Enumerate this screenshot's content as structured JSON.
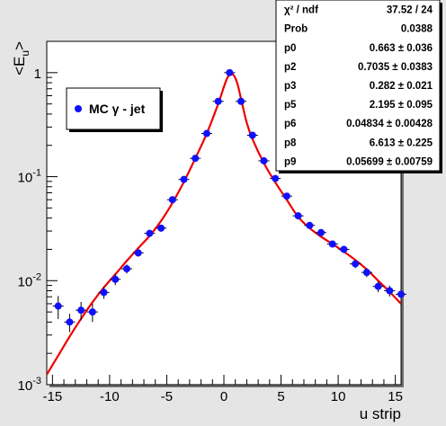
{
  "chart_data": {
    "type": "scatter",
    "xlabel": "u strip",
    "ylabel": "<E_u>",
    "xlim": [
      -15.5,
      15.5
    ],
    "ylim": [
      0.001,
      2.0
    ],
    "yscale": "log",
    "grid": false,
    "x_ticks": [
      -15,
      -10,
      -5,
      0,
      5,
      10,
      15
    ],
    "y_ticks": [
      {
        "value": 0.001,
        "base": "10",
        "exp": "-3"
      },
      {
        "value": 0.01,
        "base": "10",
        "exp": "-2"
      },
      {
        "value": 0.1,
        "base": "10",
        "exp": "-1"
      },
      {
        "value": 1,
        "base": "1",
        "exp": ""
      }
    ],
    "colors": {
      "markers": "#1010ff",
      "fit": "#ee0000",
      "frame": "#e5e5e5",
      "plot_bg": "#ffffff"
    },
    "series": [
      {
        "name": "MC γ - jet",
        "x": [
          -14.5,
          -13.5,
          -12.5,
          -11.5,
          -10.5,
          -9.5,
          -8.5,
          -7.5,
          -6.5,
          -5.5,
          -4.5,
          -3.5,
          -2.5,
          -1.5,
          -0.5,
          0.5,
          1.5,
          2.5,
          3.5,
          4.5,
          5.5,
          6.5,
          7.5,
          8.5,
          9.5,
          10.5,
          11.5,
          12.5,
          13.5,
          14.5,
          15.5
        ],
        "y": [
          0.0057,
          0.004,
          0.0052,
          0.005,
          0.0077,
          0.0103,
          0.013,
          0.0185,
          0.0285,
          0.032,
          0.06,
          0.094,
          0.15,
          0.26,
          0.53,
          1.0,
          0.53,
          0.25,
          0.142,
          0.096,
          0.065,
          0.042,
          0.034,
          0.029,
          0.0225,
          0.02,
          0.0145,
          0.012,
          0.0088,
          0.008,
          0.0074
        ],
        "yerr_frac": [
          0.25,
          0.2,
          0.2,
          0.2,
          0.13,
          0.12,
          0.1,
          0.08,
          0.06,
          0.05,
          0.04,
          0.03,
          0.02,
          0.02,
          0.01,
          0.01,
          0.01,
          0.02,
          0.03,
          0.04,
          0.05,
          0.05,
          0.06,
          0.06,
          0.07,
          0.08,
          0.09,
          0.1,
          0.12,
          0.12,
          0.13
        ]
      }
    ],
    "fit": {
      "x": [
        -15.5,
        -14.5,
        -13.5,
        -12.5,
        -11.5,
        -10.5,
        -9.5,
        -8.5,
        -7.5,
        -6.5,
        -5.5,
        -4.5,
        -3.5,
        -2.5,
        -1.5,
        -0.5,
        0.0,
        0.3,
        0.6,
        0.9,
        1.2,
        1.5,
        2.0,
        2.5,
        3.5,
        4.5,
        5.5,
        6.5,
        7.5,
        8.5,
        9.5,
        10.5,
        11.5,
        12.5,
        13.5,
        14.5,
        15.5
      ],
      "y": [
        0.00125,
        0.0019,
        0.0029,
        0.0043,
        0.0062,
        0.0086,
        0.0115,
        0.0155,
        0.0205,
        0.027,
        0.0375,
        0.056,
        0.089,
        0.15,
        0.26,
        0.5,
        0.73,
        0.89,
        0.98,
        0.93,
        0.77,
        0.56,
        0.33,
        0.23,
        0.135,
        0.088,
        0.06,
        0.041,
        0.032,
        0.0265,
        0.0225,
        0.019,
        0.0158,
        0.0128,
        0.01,
        0.0078,
        0.006
      ]
    },
    "legend": {
      "entries": [
        "MC γ - jet"
      ],
      "placement": "upper-left"
    },
    "stats": {
      "placement": "top-right",
      "rows": [
        {
          "label": "χ² / ndf",
          "value": "37.52 / 24"
        },
        {
          "label": "Prob",
          "value": "0.0388"
        },
        {
          "label": "p0",
          "value": "0.663 ± 0.036"
        },
        {
          "label": "p2",
          "value": "0.7035 ± 0.0383"
        },
        {
          "label": "p3",
          "value": "0.282 ± 0.021"
        },
        {
          "label": "p5",
          "value": "2.195 ± 0.095"
        },
        {
          "label": "p6",
          "value": "0.04834 ± 0.00428"
        },
        {
          "label": "p8",
          "value": "6.613 ± 0.225"
        },
        {
          "label": "p9",
          "value": "0.05699 ± 0.00759"
        }
      ]
    }
  }
}
